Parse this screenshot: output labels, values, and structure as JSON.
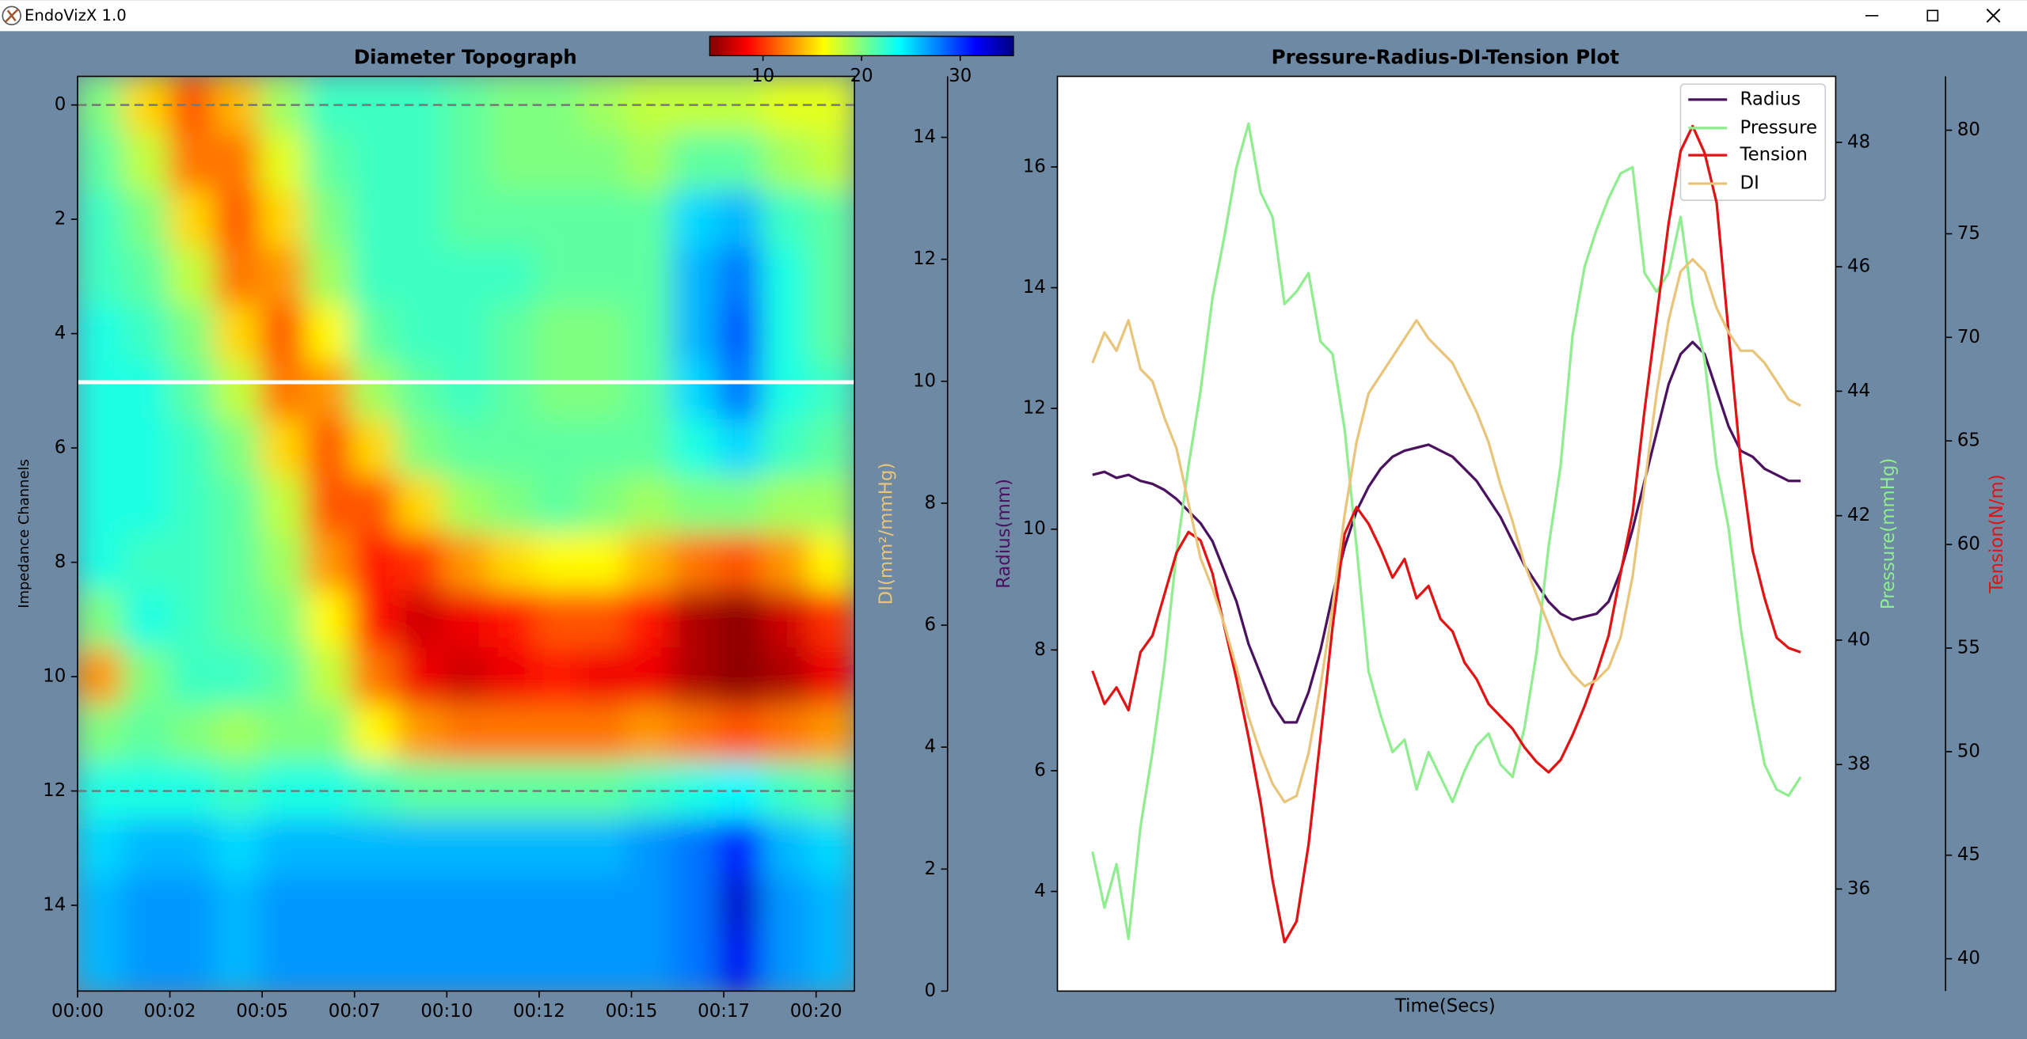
{
  "window": {
    "title": "EndoVizX 1.0"
  },
  "chart_data": [
    {
      "type": "heatmap",
      "title": "Diameter Topograph",
      "ylabel": "Impedance Channels",
      "xlim": [
        0,
        21.04
      ],
      "xticks": [
        {
          "value": 0,
          "label": "00:00"
        },
        {
          "value": 2.5,
          "label": "00:02"
        },
        {
          "value": 5,
          "label": "00:05"
        },
        {
          "value": 7.5,
          "label": "00:07"
        },
        {
          "value": 10,
          "label": "00:10"
        },
        {
          "value": 12.5,
          "label": "00:12"
        },
        {
          "value": 15,
          "label": "00:15"
        },
        {
          "value": 17.5,
          "label": "00:17"
        },
        {
          "value": 20,
          "label": "00:20"
        }
      ],
      "ylim": [
        -0.5,
        15.5
      ],
      "y_inverted": true,
      "yticks": [
        0,
        2,
        4,
        6,
        8,
        10,
        12,
        14
      ],
      "colormap": "jet_r",
      "clim": [
        4.6,
        35.4
      ],
      "colorbar_ticks": [
        10,
        20,
        30
      ],
      "reference_lines": [
        0,
        12
      ],
      "selected_channel": 4.85,
      "z": [
        [
          20,
          15,
          11,
          14,
          19,
          22,
          22,
          22,
          21,
          20,
          20,
          19,
          18,
          18,
          18,
          17,
          17
        ],
        [
          21,
          18,
          12,
          12,
          17,
          21,
          22,
          22,
          21,
          20,
          20,
          20,
          19,
          21,
          21,
          19,
          18
        ],
        [
          22,
          20,
          15,
          11,
          15,
          20,
          22,
          22,
          21,
          21,
          21,
          21,
          21,
          25,
          26,
          22,
          21
        ],
        [
          22,
          21,
          18,
          12,
          13,
          19,
          22,
          22,
          22,
          22,
          21,
          21,
          21,
          26,
          28,
          23,
          21
        ],
        [
          23,
          22,
          20,
          15,
          11,
          16,
          21,
          22,
          22,
          21,
          20,
          20,
          21,
          26,
          29,
          23,
          21
        ],
        [
          23,
          23,
          21,
          18,
          12,
          13,
          19,
          21,
          22,
          21,
          20,
          20,
          21,
          25,
          28,
          23,
          22
        ],
        [
          23,
          23,
          22,
          20,
          15,
          11,
          15,
          20,
          21,
          21,
          21,
          21,
          21,
          23,
          25,
          22,
          21
        ],
        [
          23,
          23,
          22,
          21,
          18,
          11,
          11,
          15,
          19,
          20,
          21,
          20,
          19,
          20,
          20,
          19,
          19
        ],
        [
          23,
          22,
          22,
          21,
          19,
          13,
          9,
          10,
          13,
          15,
          16,
          16,
          14,
          12,
          11,
          13,
          16
        ],
        [
          20,
          23,
          22,
          21,
          20,
          16,
          9,
          7,
          8,
          9,
          11,
          11,
          9,
          6,
          5,
          7,
          10
        ],
        [
          13,
          20,
          22,
          22,
          21,
          18,
          12,
          8,
          7,
          8,
          9,
          8,
          8,
          6,
          5,
          6,
          8
        ],
        [
          20,
          21,
          20,
          19,
          20,
          20,
          16,
          13,
          12,
          12,
          12,
          12,
          13,
          12,
          11,
          12,
          13
        ],
        [
          23,
          23,
          23,
          22,
          23,
          23,
          22,
          21,
          21,
          21,
          21,
          21,
          22,
          23,
          24,
          22,
          21
        ],
        [
          25,
          26,
          26,
          25,
          26,
          26,
          26,
          26,
          26,
          26,
          26,
          26,
          27,
          28,
          31,
          26,
          25
        ],
        [
          26,
          27,
          27,
          26,
          27,
          27,
          27,
          27,
          27,
          27,
          27,
          27,
          27,
          28,
          33,
          27,
          26
        ],
        [
          26,
          27,
          27,
          26,
          27,
          27,
          27,
          27,
          27,
          27,
          27,
          27,
          27,
          28,
          32,
          27,
          26
        ]
      ]
    },
    {
      "type": "line",
      "title": "Pressure-Radius-DI-Tension Plot",
      "xlabel": "Time(Secs)",
      "ylabel": "Radius(mm)",
      "ylim": [
        2.35,
        17.5
      ],
      "yticks": [
        4,
        6,
        8,
        10,
        12,
        14,
        16
      ],
      "y2label": "Pressure(mmHg)",
      "y2lim": [
        34.36,
        49.06
      ],
      "y2ticks": [
        36,
        38,
        40,
        42,
        44,
        46,
        48
      ],
      "y3label": "Tension(N/m)",
      "y3lim": [
        38.44,
        82.6
      ],
      "y3ticks": [
        40,
        45,
        50,
        55,
        60,
        65,
        70,
        75,
        80
      ],
      "y4label": "DI(mm²/mmHg)",
      "y4lim": [
        0,
        15
      ],
      "y4ticks": [
        0,
        2,
        4,
        6,
        8,
        10,
        12,
        14
      ],
      "legend": "upper right",
      "series": [
        {
          "name": "Radius",
          "color": "#4b135f",
          "axis": "y",
          "values": [
            10.9,
            10.95,
            10.85,
            10.9,
            10.8,
            10.75,
            10.65,
            10.5,
            10.3,
            10.1,
            9.8,
            9.3,
            8.8,
            8.1,
            7.6,
            7.1,
            6.8,
            6.8,
            7.3,
            8.0,
            8.9,
            9.7,
            10.3,
            10.7,
            11.0,
            11.2,
            11.3,
            11.35,
            11.4,
            11.3,
            11.2,
            11.0,
            10.8,
            10.5,
            10.2,
            9.8,
            9.4,
            9.1,
            8.8,
            8.6,
            8.5,
            8.55,
            8.6,
            8.8,
            9.3,
            10.0,
            10.8,
            11.6,
            12.4,
            12.9,
            13.1,
            12.9,
            12.3,
            11.7,
            11.3,
            11.2,
            11.0,
            10.9,
            10.8,
            10.8
          ]
        },
        {
          "name": "Pressure",
          "color": "#90ee90",
          "axis": "y2",
          "values": [
            36.6,
            35.7,
            36.4,
            35.2,
            37.0,
            38.2,
            39.6,
            41.4,
            42.8,
            44.0,
            45.5,
            46.5,
            47.6,
            48.3,
            47.2,
            46.8,
            45.4,
            45.6,
            45.9,
            44.8,
            44.6,
            43.4,
            41.5,
            39.5,
            38.8,
            38.2,
            38.4,
            37.6,
            38.2,
            37.8,
            37.4,
            37.9,
            38.3,
            38.5,
            38.0,
            37.8,
            38.6,
            39.8,
            41.5,
            42.8,
            44.9,
            46.0,
            46.6,
            47.1,
            47.5,
            47.6,
            45.9,
            45.6,
            45.9,
            46.8,
            45.4,
            44.5,
            42.8,
            41.8,
            40.2,
            39.0,
            38.0,
            37.6,
            37.5,
            37.8
          ]
        },
        {
          "name": "Tension",
          "color": "#e01414",
          "axis": "y3",
          "values": [
            53.9,
            52.3,
            53.1,
            52.0,
            54.8,
            55.6,
            57.6,
            59.6,
            60.6,
            60.2,
            58.6,
            56.0,
            53.5,
            50.7,
            47.6,
            43.8,
            40.8,
            41.8,
            45.5,
            50.7,
            56.0,
            60.5,
            61.8,
            61.0,
            59.8,
            58.4,
            59.3,
            57.4,
            58.0,
            56.4,
            55.8,
            54.3,
            53.5,
            52.3,
            51.7,
            51.1,
            50.2,
            49.5,
            49.0,
            49.6,
            50.8,
            52.2,
            53.8,
            55.6,
            58.6,
            61.5,
            66.5,
            71.0,
            75.5,
            79.0,
            80.2,
            78.9,
            76.5,
            70.2,
            64.0,
            59.7,
            57.4,
            55.5,
            55.0,
            54.8
          ]
        },
        {
          "name": "DI",
          "color": "#e8c57a",
          "axis": "y4",
          "values": [
            10.3,
            10.8,
            10.5,
            11.0,
            10.2,
            10.0,
            9.4,
            8.9,
            8.0,
            7.1,
            6.6,
            6.0,
            5.3,
            4.5,
            3.9,
            3.4,
            3.1,
            3.2,
            3.9,
            5.0,
            6.3,
            7.8,
            9.0,
            9.8,
            10.1,
            10.4,
            10.7,
            11.0,
            10.7,
            10.5,
            10.3,
            9.9,
            9.5,
            9.0,
            8.3,
            7.7,
            7.0,
            6.5,
            6.0,
            5.5,
            5.2,
            5.0,
            5.1,
            5.3,
            5.8,
            6.8,
            8.3,
            9.8,
            11.0,
            11.8,
            12.0,
            11.8,
            11.2,
            10.8,
            10.5,
            10.5,
            10.3,
            10.0,
            9.7,
            9.6
          ]
        }
      ]
    }
  ]
}
